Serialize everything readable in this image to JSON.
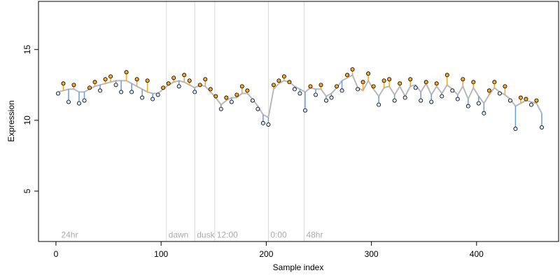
{
  "chart_data": {
    "type": "scatter",
    "xlabel": "Sample index",
    "ylabel": "Expression",
    "xlim": [
      -16.6,
      478
    ],
    "ylim": [
      1.44,
      18.4
    ],
    "xticks": [
      0,
      100,
      200,
      300,
      400
    ],
    "yticks": [
      5,
      10,
      15
    ],
    "vlines": [
      105,
      132,
      151,
      202,
      236
    ],
    "vline_color": "#d9d9d9",
    "annotations": [
      {
        "x": 3,
        "label": "24hr"
      },
      {
        "x": 105,
        "label": "dawn"
      },
      {
        "x": 132,
        "label": "dusk"
      },
      {
        "x": 151,
        "label": "12:00"
      },
      {
        "x": 202,
        "label": "0:00"
      },
      {
        "x": 236,
        "label": "48hr"
      }
    ],
    "annotation_y": 1.9,
    "above_color": "#f5a623",
    "below_color": "#6a9bdc",
    "fit_color": "#b8b8b8",
    "x": [
      2,
      7,
      12,
      17,
      22,
      27,
      32,
      37,
      42,
      47,
      52,
      57,
      62,
      67,
      72,
      77,
      82,
      87,
      92,
      97,
      102,
      107,
      112,
      117,
      122,
      127,
      132,
      137,
      142,
      147,
      152,
      157,
      162,
      167,
      172,
      177,
      182,
      187,
      192,
      197,
      202,
      207,
      212,
      217,
      222,
      227,
      232,
      237,
      242,
      247,
      252,
      257,
      262,
      267,
      272,
      277,
      282,
      287,
      292,
      297,
      302,
      307,
      312,
      317,
      322,
      327,
      332,
      337,
      342,
      347,
      352,
      357,
      362,
      367,
      372,
      377,
      382,
      387,
      392,
      397,
      402,
      407,
      412,
      417,
      422,
      427,
      432,
      437,
      442,
      447,
      452,
      457,
      462
    ],
    "values": [
      11.9,
      12.6,
      11.3,
      12.5,
      11.2,
      11.4,
      12.3,
      12.7,
      12.1,
      12.9,
      13.1,
      12.5,
      12.0,
      13.4,
      12.0,
      12.9,
      11.6,
      12.8,
      11.5,
      11.8,
      12.3,
      12.6,
      13.0,
      12.4,
      13.2,
      12.8,
      12.0,
      12.5,
      12.9,
      12.2,
      11.7,
      10.8,
      11.6,
      11.3,
      11.8,
      12.4,
      12.1,
      11.4,
      10.8,
      9.8,
      9.7,
      12.5,
      12.8,
      13.1,
      12.7,
      12.2,
      11.9,
      10.7,
      12.4,
      11.8,
      12.5,
      11.4,
      11.6,
      12.4,
      12.1,
      13.2,
      13.6,
      12.2,
      12.7,
      13.3,
      12.4,
      11.1,
      12.8,
      12.9,
      11.4,
      12.6,
      11.6,
      12.9,
      12.3,
      11.4,
      12.7,
      11.3,
      12.6,
      11.7,
      13.2,
      12.1,
      11.5,
      12.9,
      11.0,
      12.7,
      11.2,
      10.5,
      12.1,
      12.7,
      11.9,
      12.4,
      11.4,
      9.4,
      11.6,
      11.5,
      11.1,
      11.4,
      9.5
    ],
    "fit": [
      12.0,
      12.1,
      12.2,
      12.2,
      12.0,
      12.0,
      12.2,
      12.4,
      12.5,
      12.6,
      12.7,
      12.8,
      12.8,
      12.8,
      12.6,
      12.4,
      12.2,
      12.0,
      11.9,
      11.9,
      12.2,
      12.5,
      12.7,
      12.8,
      12.7,
      12.5,
      12.3,
      12.5,
      12.4,
      12.0,
      11.6,
      11.1,
      11.4,
      11.6,
      11.6,
      11.9,
      11.9,
      11.5,
      11.0,
      10.4,
      10.2,
      12.2,
      12.6,
      12.8,
      12.7,
      12.4,
      12.2,
      12.0,
      12.3,
      12.2,
      12.2,
      11.7,
      11.9,
      12.3,
      12.8,
      13.0,
      13.2,
      12.3,
      12.1,
      12.8,
      12.2,
      11.7,
      12.3,
      12.4,
      11.8,
      12.4,
      11.7,
      12.4,
      12.5,
      12.0,
      12.6,
      11.8,
      12.4,
      11.9,
      12.5,
      12.2,
      11.8,
      12.4,
      11.5,
      12.3,
      11.7,
      11.2,
      11.8,
      12.3,
      12.0,
      11.8,
      11.5,
      11.0,
      11.2,
      11.4,
      11.3,
      11.2,
      10.5
    ]
  }
}
